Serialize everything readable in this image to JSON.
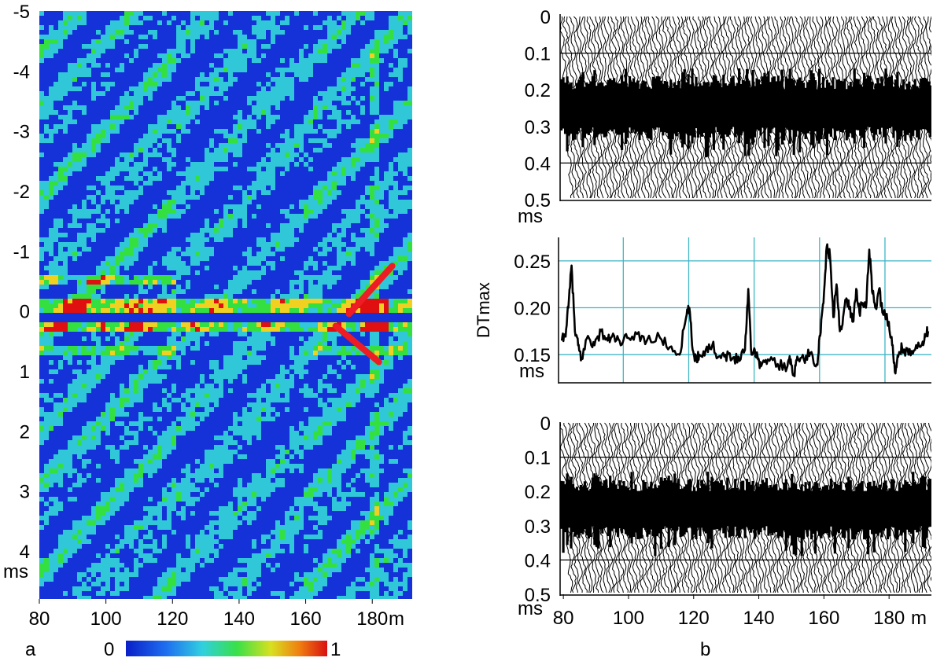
{
  "panel_labels": {
    "a": "a",
    "b": "b"
  },
  "colors": {
    "heat_low": "#1432d8",
    "heat_mid": "#30c8d8",
    "heat_high_green": "#34e040",
    "heat_high_yellow": "#f0d020",
    "heat_max": "#e01010",
    "arrow": "#ee1c24",
    "trace": "#000000",
    "grid_teal": "#3fb6c6"
  },
  "chart_data": [
    {
      "id": "panel-a-heatmap",
      "type": "heatmap",
      "title": "",
      "xlabel": "m",
      "ylabel": "ms",
      "xlim": [
        80,
        192
      ],
      "ylim": [
        -5,
        4.8
      ],
      "x_ticks": [
        "80",
        "100",
        "120",
        "140",
        "160",
        "180"
      ],
      "y_ticks": [
        "-5",
        "-4",
        "-3",
        "-2",
        "-1",
        "0",
        "1",
        "2",
        "3",
        "4"
      ],
      "colorbar": {
        "min_label": "0",
        "max_label": "1",
        "range": [
          0,
          1
        ],
        "colormap": "jet"
      },
      "bright_band_centers_ms": [
        -0.1,
        0.2
      ],
      "arrows": [
        {
          "from": [
            186,
            -0.75
          ],
          "to": [
            173,
            0.05
          ]
        },
        {
          "from": [
            182,
            0.85
          ],
          "to": [
            169,
            0.25
          ]
        }
      ]
    },
    {
      "id": "panel-b-top-traces",
      "type": "line",
      "title": "",
      "xlabel": "m",
      "ylabel": "ms",
      "xlim": [
        79,
        193
      ],
      "ylim": [
        0,
        0.5
      ],
      "y_ticks": [
        "0",
        "0.1",
        "0.2",
        "0.3",
        "0.4",
        "0.5"
      ],
      "x_ticks": [],
      "energy_band_ms": [
        0.18,
        0.32
      ]
    },
    {
      "id": "panel-b-dtmax",
      "type": "line",
      "title": "",
      "xlabel": "",
      "ylabel": "DTmax",
      "yunit": "ms",
      "xlim": [
        79,
        193
      ],
      "ylim": [
        0.12,
        0.275
      ],
      "y_ticks": [
        "0.15",
        "0.20",
        "0.25"
      ],
      "grid": true,
      "series": [
        {
          "x": [
            80,
            81,
            82,
            83,
            84,
            85,
            86,
            88,
            90,
            92,
            94,
            96,
            98,
            100,
            103,
            106,
            110,
            113,
            116,
            118,
            119,
            120,
            121,
            122,
            124,
            126,
            128,
            130,
            132,
            134,
            136,
            137,
            138,
            139,
            140,
            141,
            143,
            146,
            149,
            150,
            151,
            152,
            154,
            156,
            158,
            159,
            160,
            161,
            162,
            163,
            164,
            165,
            166,
            167,
            168,
            169,
            170,
            171,
            172,
            173,
            174,
            175,
            176,
            177,
            178,
            180,
            181,
            182,
            183,
            184,
            186,
            188,
            190,
            191,
            192
          ],
          "y": [
            0.165,
            0.17,
            0.2,
            0.245,
            0.175,
            0.16,
            0.145,
            0.17,
            0.16,
            0.175,
            0.165,
            0.17,
            0.16,
            0.168,
            0.172,
            0.165,
            0.168,
            0.158,
            0.15,
            0.19,
            0.2,
            0.155,
            0.145,
            0.15,
            0.155,
            0.16,
            0.148,
            0.15,
            0.145,
            0.148,
            0.155,
            0.22,
            0.15,
            0.155,
            0.145,
            0.138,
            0.145,
            0.14,
            0.138,
            0.145,
            0.128,
            0.148,
            0.145,
            0.152,
            0.14,
            0.17,
            0.205,
            0.265,
            0.255,
            0.19,
            0.225,
            0.175,
            0.19,
            0.21,
            0.2,
            0.185,
            0.22,
            0.195,
            0.205,
            0.2,
            0.262,
            0.215,
            0.2,
            0.22,
            0.195,
            0.185,
            0.16,
            0.13,
            0.15,
            0.158,
            0.15,
            0.155,
            0.16,
            0.172,
            0.175
          ]
        }
      ]
    },
    {
      "id": "panel-b-bottom-traces",
      "type": "line",
      "title": "",
      "xlabel": "m",
      "ylabel": "ms",
      "xlim": [
        79,
        193
      ],
      "ylim": [
        0,
        0.5
      ],
      "y_ticks": [
        "0",
        "0.1",
        "0.2",
        "0.3",
        "0.4",
        "0.5"
      ],
      "x_ticks": [
        "80",
        "100",
        "120",
        "140",
        "160",
        "180"
      ],
      "energy_band_ms": [
        0.18,
        0.32
      ]
    }
  ]
}
